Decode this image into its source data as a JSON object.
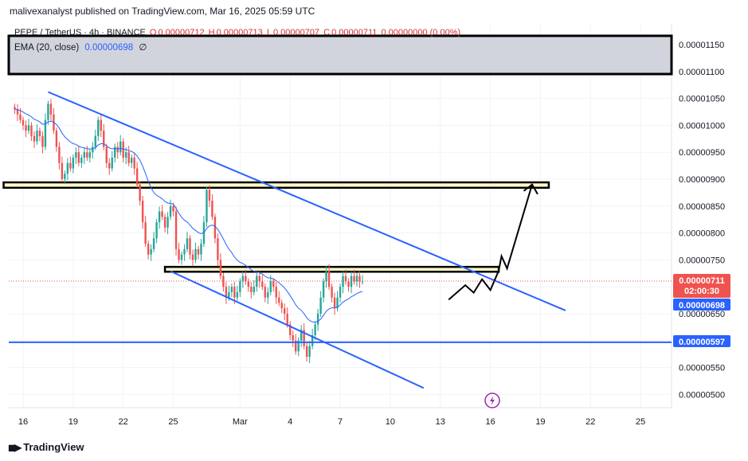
{
  "header": {
    "publisher": "malivexanalyst published on TradingView.com, Mar 16, 2025 05:59 UTC"
  },
  "legend": {
    "symbol": "PEPE / TetherUS · 4h · BINANCE",
    "open_label": "O",
    "open": "0.00000712",
    "high_label": "H",
    "high": "0.00000713",
    "low_label": "L",
    "low": "0.00000707",
    "close_label": "C",
    "close": "0.00000711",
    "change": "0.00000000 (0.00%)",
    "ema_label": "EMA (20, close)",
    "ema_value": "0.00000698",
    "ema_extra": "∅"
  },
  "price_tags": {
    "last_price": "0.00000711",
    "countdown": "02:00:30",
    "ema": "0.00000698",
    "support_line": "0.00000597"
  },
  "footer": {
    "brand": "TradingView"
  },
  "colors": {
    "up": "#26a69a",
    "down": "#ef5350",
    "ema": "#2962ff",
    "channel": "#2962ff",
    "last_price_tag": "#ef5350",
    "ema_tag": "#2962ff",
    "support_tag": "#2962ff",
    "icon": "#9c27b0"
  },
  "icons": {
    "flash": "lightning-icon"
  },
  "chart_data": {
    "type": "candlestick",
    "symbol": "PEPE / TetherUS",
    "timeframe": "4h",
    "exchange": "BINANCE",
    "y_unit": "USDT",
    "ylim": [
      4.8e-06,
      1.18e-05
    ],
    "y_ticks": [
      "0.00001150",
      "0.00001100",
      "0.00001050",
      "0.00001000",
      "0.00000950",
      "0.00000900",
      "0.00000850",
      "0.00000800",
      "0.00000750",
      "0.00000700",
      "0.00000650",
      "0.00000600",
      "0.00000550",
      "0.00000500"
    ],
    "y_tick_values": [
      1.15e-05,
      1.1e-05,
      1.05e-05,
      1e-05,
      9.5e-06,
      9e-06,
      8.5e-06,
      8e-06,
      7.5e-06,
      7e-06,
      6.5e-06,
      6e-06,
      5.5e-06,
      5e-06
    ],
    "x_ticks": [
      "16",
      "19",
      "22",
      "25",
      "Mar",
      "4",
      "7",
      "10",
      "13",
      "16",
      "19",
      "22",
      "25"
    ],
    "x_tick_dates": [
      "2025-02-16",
      "2025-02-19",
      "2025-02-22",
      "2025-02-25",
      "2025-03-01",
      "2025-03-04",
      "2025-03-07",
      "2025-03-10",
      "2025-03-13",
      "2025-03-16",
      "2025-03-19",
      "2025-03-22",
      "2025-03-25"
    ],
    "x_start": "2025-02-15T12:00",
    "candle_hours": 4,
    "candles_close": [
      1.03e-05,
      1.02e-05,
      1.01e-05,
      1e-05,
      9.9e-06,
      1e-05,
      9.8e-06,
      9.7e-06,
      9.9e-06,
      9.8e-06,
      9.6e-06,
      1.01e-05,
      1.04e-05,
      1.02e-05,
      9.9e-06,
      9.6e-06,
      9.3e-06,
      9e-06,
      9.1e-06,
      9.3e-06,
      9.2e-06,
      9.4e-06,
      9.5e-06,
      9.3e-06,
      9.4e-06,
      9.5e-06,
      9.4e-06,
      9.5e-06,
      9.6e-06,
      9.8e-06,
      1.01e-05,
      9.9e-06,
      9.6e-06,
      9.3e-06,
      9.2e-06,
      9.4e-06,
      9.6e-06,
      9.5e-06,
      9.7e-06,
      9.4e-06,
      9.5e-06,
      9.3e-06,
      9.4e-06,
      9.2e-06,
      8.9e-06,
      8.6e-06,
      8.2e-06,
      7.8e-06,
      7.6e-06,
      7.7e-06,
      7.9e-06,
      8.2e-06,
      8.4e-06,
      8.3e-06,
      8.1e-06,
      8.3e-06,
      8.5e-06,
      8.4e-06,
      7.7e-06,
      7.5e-06,
      7.6e-06,
      7.7e-06,
      7.9e-06,
      7.6e-06,
      7.5e-06,
      7.7e-06,
      7.6e-06,
      7.8e-06,
      8.2e-06,
      8.8e-06,
      8.6e-06,
      8.3e-06,
      7.9e-06,
      7.5e-06,
      7.2e-06,
      7e-06,
      6.8e-06,
      6.9e-06,
      7e-06,
      6.8e-06,
      6.9e-06,
      7.1e-06,
      7.2e-06,
      7.1e-06,
      7e-06,
      6.9e-06,
      7e-06,
      7.2e-06,
      7.1e-06,
      7e-06,
      6.8e-06,
      6.9e-06,
      7.1e-06,
      7e-06,
      6.8e-06,
      6.7e-06,
      6.6e-06,
      6.5e-06,
      6.3e-06,
      6.1e-06,
      6e-06,
      5.8e-06,
      6e-06,
      6.2e-06,
      5.9e-06,
      5.7e-06,
      5.9e-06,
      6.1e-06,
      6.3e-06,
      6.5e-06,
      6.8e-06,
      7.1e-06,
      7.3e-06,
      7e-06,
      6.8e-06,
      6.6e-06,
      6.8e-06,
      7e-06,
      7.2e-06,
      7.1e-06,
      7e-06,
      7.2e-06,
      7.1e-06,
      7.2e-06,
      7.1e-06,
      7.1e-06
    ],
    "ema_period": 20,
    "drawings": {
      "channel_upper": [
        [
          "2025-02-17T12:00",
          1.062e-05
        ],
        [
          "2025-03-20T12:00",
          6.56e-06
        ]
      ],
      "channel_lower": [
        [
          "2025-02-24T20:00",
          7.29e-06
        ],
        [
          "2025-03-12T00:00",
          5.12e-06
        ]
      ],
      "support_price": 5.97e-06,
      "zone_top": [
        [
          "2025-02-14T20:00",
          8.94e-06
        ],
        [
          "2025-03-19T12:00",
          8.84e-06
        ]
      ],
      "zone_mid": [
        [
          "2025-02-24T12:00",
          7.37e-06
        ],
        [
          "2025-03-16T12:00",
          7.28e-06
        ]
      ],
      "zone_top_header": [
        1.15e-05,
        1.093e-05
      ],
      "projection": [
        [
          "2025-03-13T12:00",
          6.76e-06
        ],
        [
          "2025-03-14T12:00",
          7.03e-06
        ],
        [
          "2025-03-15T00:00",
          6.89e-06
        ],
        [
          "2025-03-15T12:00",
          7.14e-06
        ],
        [
          "2025-03-16T00:00",
          6.94e-06
        ],
        [
          "2025-03-16T12:00",
          7.3e-06
        ],
        [
          "2025-03-16T16:00",
          7.57e-06
        ],
        [
          "2025-03-17T00:00",
          7.34e-06
        ],
        [
          "2025-03-18T12:00",
          8.9e-06
        ]
      ],
      "projection_arrow_head": [
        [
          "2025-03-18T00:00",
          8.78e-06
        ],
        [
          "2025-03-18T12:00",
          8.9e-06
        ],
        [
          "2025-03-18T20:00",
          8.72e-06
        ]
      ]
    }
  }
}
